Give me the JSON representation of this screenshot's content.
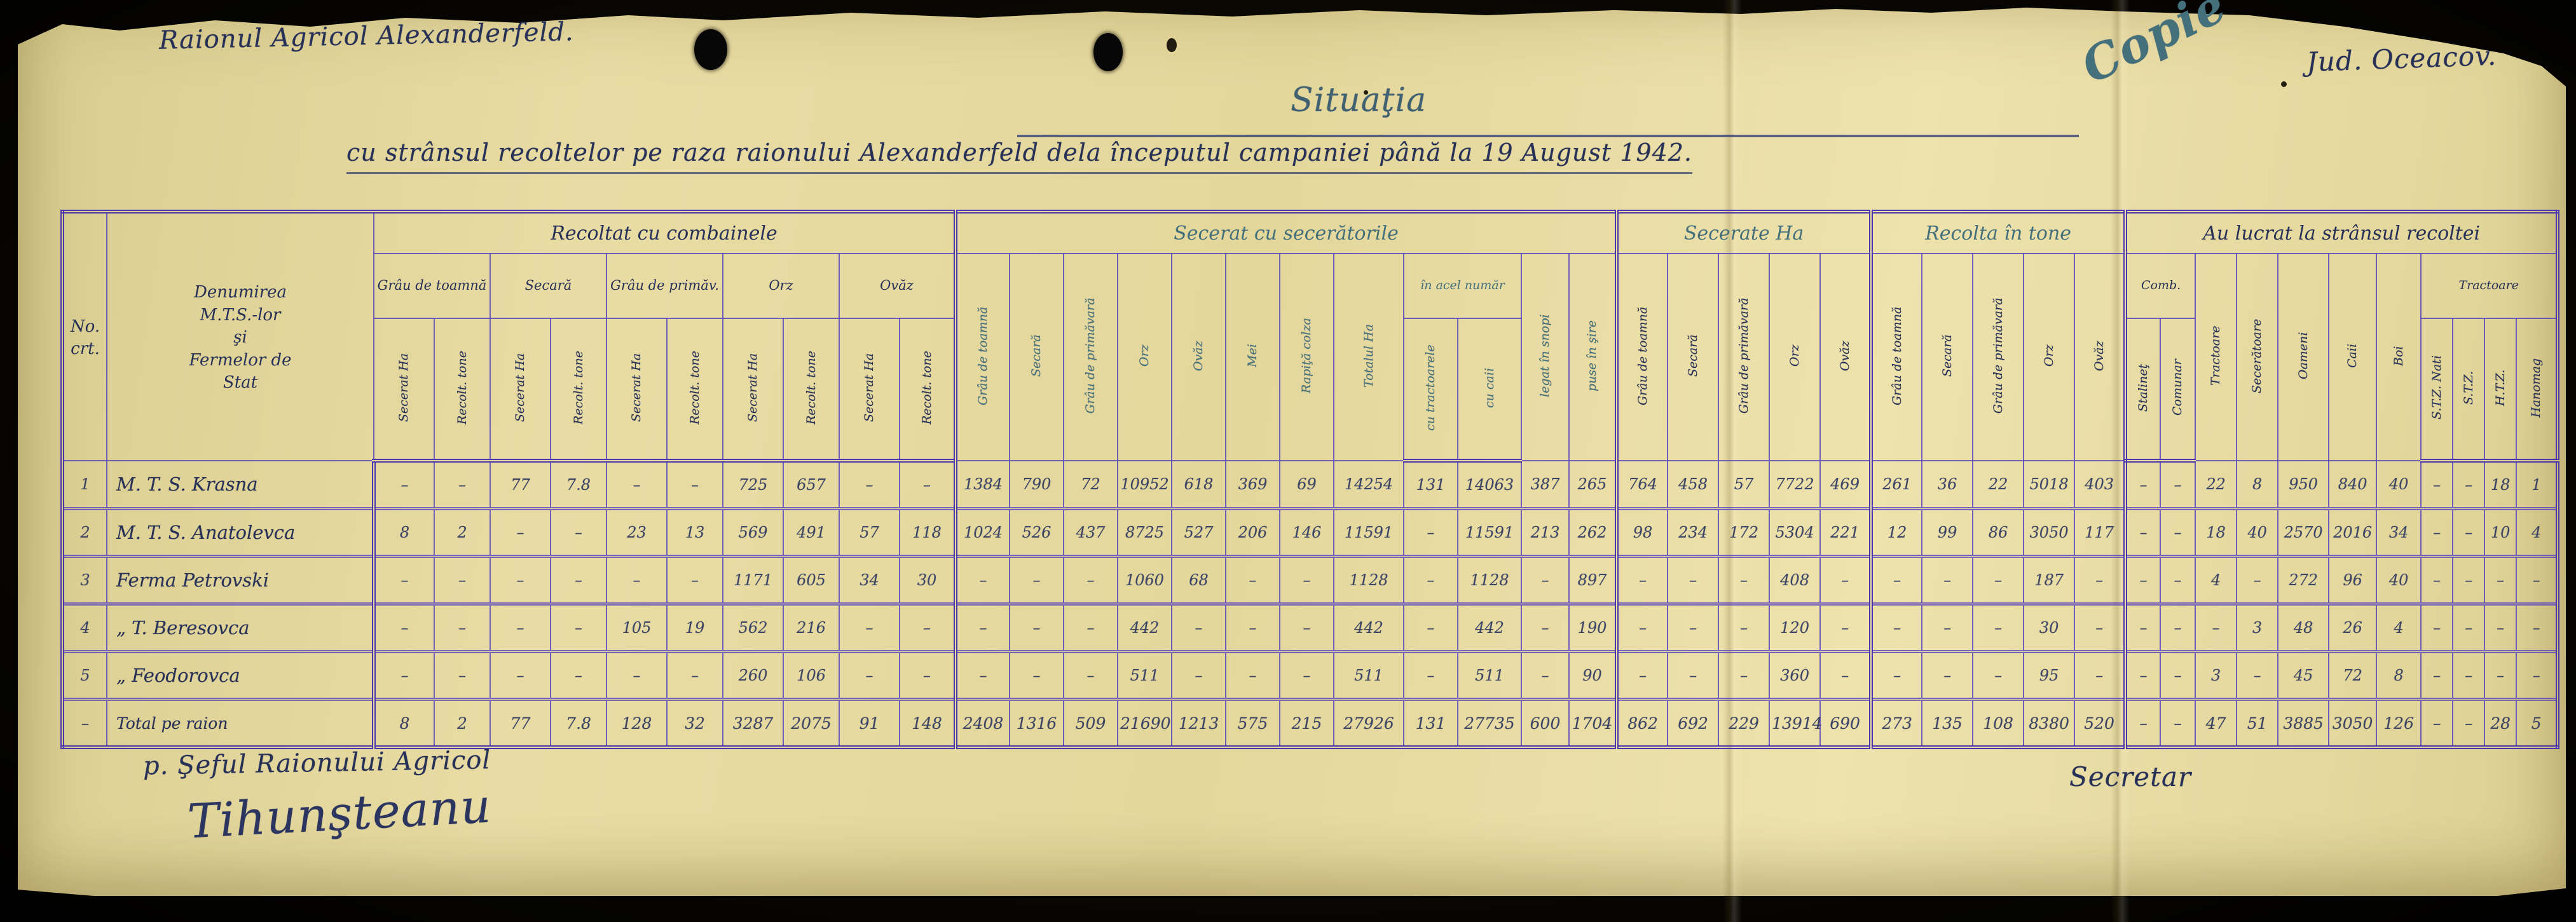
{
  "page": {
    "org_line": "Raionul Agricol Alexanderfeld.",
    "copy_stamp": "Copie",
    "county": "Jud. Oceacov.",
    "title": "Situaţia",
    "subtitle": "cu strânsul recoltelor pe raza raionului Alexanderfeld dela începutul campaniei până la 19 August 1942."
  },
  "table": {
    "no_header": "No.\ncrt.",
    "name_header": "Denumirea\nM.T.S.-lor\nşi\nFermelor de\nStat",
    "groups": {
      "combines": "Recoltat cu combainele",
      "reapers": "Secerat cu secerătorile",
      "secerate_ha": "Secerate Ha",
      "recolta_tone": "Recolta în tone",
      "workforce": "Au lucrat la strânsul recoltei",
      "comb": "Comb.",
      "in_acel_numar": "în acel număr",
      "tractoare_models": "Tractoare"
    },
    "combine_crops": [
      "Grâu de toamnă",
      "Secară",
      "Grâu de primăv.",
      "Orz",
      "Ovăz"
    ],
    "combine_sub": [
      "Secerat Ha",
      "Recolt. tone"
    ],
    "reaper_cols": [
      "Grâu de toamnă",
      "Secară",
      "Grâu de primăvară",
      "Orz",
      "Ovăz",
      "Mei",
      "Rapiţă colza",
      "Totalul Ha"
    ],
    "in_acel_numar_cols": [
      "cu tractoarele",
      "cu caii"
    ],
    "after_reaper_cols": [
      "legat în snopi",
      "puse în şire"
    ],
    "secerate_cols": [
      "Grâu de toamnă",
      "Secară",
      "Grâu de primăvară",
      "Orz",
      "Ovăz"
    ],
    "tone_cols": [
      "Grâu de toamnă",
      "Secară",
      "Grâu de primăvară",
      "Orz",
      "Ovăz"
    ],
    "work_cols": {
      "comb": [
        "Stalineţ",
        "Comunar"
      ],
      "mid": [
        "Tractoare",
        "Secerătoare",
        "Oameni",
        "Caii",
        "Boi"
      ],
      "tractor_models": [
        "S.T.Z. Nati",
        "S.T.Z.",
        "H.T.Z.",
        "Hanomag"
      ]
    },
    "rows": [
      {
        "no": "1",
        "name": "M. T. S. Krasna",
        "values": [
          "-",
          "-",
          "77",
          "7.8",
          "-",
          "-",
          "725",
          "657",
          "-",
          "-",
          "1384",
          "790",
          "72",
          "10952",
          "618",
          "369",
          "69",
          "14254",
          "131",
          "14063",
          "387",
          "265",
          "764",
          "458",
          "57",
          "7722",
          "469",
          "261",
          "36",
          "22",
          "5018",
          "403",
          "-",
          "-",
          "22",
          "8",
          "950",
          "840",
          "40",
          "-",
          "-",
          "18",
          "1"
        ]
      },
      {
        "no": "2",
        "name": "M. T. S. Anatolevca",
        "values": [
          "8",
          "2",
          "-",
          "-",
          "23",
          "13",
          "569",
          "491",
          "57",
          "118",
          "1024",
          "526",
          "437",
          "8725",
          "527",
          "206",
          "146",
          "11591",
          "-",
          "11591",
          "213",
          "262",
          "98",
          "234",
          "172",
          "5304",
          "221",
          "12",
          "99",
          "86",
          "3050",
          "117",
          "-",
          "-",
          "18",
          "40",
          "2570",
          "2016",
          "34",
          "-",
          "-",
          "10",
          "4"
        ]
      },
      {
        "no": "3",
        "name": "Ferma Petrovski",
        "values": [
          "-",
          "-",
          "-",
          "-",
          "-",
          "-",
          "1171",
          "605",
          "34",
          "30",
          "-",
          "-",
          "-",
          "1060",
          "68",
          "-",
          "-",
          "1128",
          "-",
          "1128",
          "-",
          "897",
          "-",
          "-",
          "-",
          "408",
          "-",
          "-",
          "-",
          "-",
          "187",
          "-",
          "-",
          "-",
          "4",
          "-",
          "272",
          "96",
          "40",
          "-",
          "-",
          "-",
          "-"
        ]
      },
      {
        "no": "4",
        "name": "„  T. Beresovca",
        "values": [
          "-",
          "-",
          "-",
          "-",
          "105",
          "19",
          "562",
          "216",
          "-",
          "-",
          "-",
          "-",
          "-",
          "442",
          "-",
          "-",
          "-",
          "442",
          "-",
          "442",
          "-",
          "190",
          "-",
          "-",
          "-",
          "120",
          "-",
          "-",
          "-",
          "-",
          "30",
          "-",
          "-",
          "-",
          "-",
          "3",
          "48",
          "26",
          "4",
          "-",
          "-",
          "-",
          "-"
        ]
      },
      {
        "no": "5",
        "name": "„  Feodorovca",
        "values": [
          "-",
          "-",
          "-",
          "-",
          "-",
          "-",
          "260",
          "106",
          "-",
          "-",
          "-",
          "-",
          "-",
          "511",
          "-",
          "-",
          "-",
          "511",
          "-",
          "511",
          "-",
          "90",
          "-",
          "-",
          "-",
          "360",
          "-",
          "-",
          "-",
          "-",
          "95",
          "-",
          "-",
          "-",
          "3",
          "-",
          "45",
          "72",
          "8",
          "-",
          "-",
          "-",
          "-"
        ]
      }
    ],
    "total": {
      "no": "-",
      "name": "Total pe raion",
      "values": [
        "8",
        "2",
        "77",
        "7.8",
        "128",
        "32",
        "3287",
        "2075",
        "91",
        "148",
        "2408",
        "1316",
        "509",
        "21690",
        "1213",
        "575",
        "215",
        "27926",
        "131",
        "27735",
        "600",
        "1704",
        "862",
        "692",
        "229",
        "13914",
        "690",
        "273",
        "135",
        "108",
        "8380",
        "520",
        "-",
        "-",
        "47",
        "51",
        "3885",
        "3050",
        "126",
        "-",
        "-",
        "28",
        "5"
      ]
    }
  },
  "footer": {
    "left_role": "p. Şeful Raionului Agricol",
    "left_signature": "Tihunşteanu",
    "right_role": "Secretar"
  }
}
